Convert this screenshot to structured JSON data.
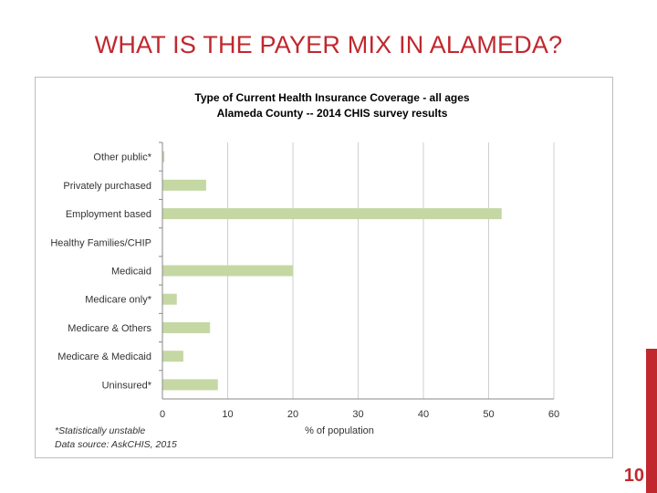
{
  "slide": {
    "title": "WHAT IS THE PAYER MIX IN ALAMEDA?",
    "page_number": "10",
    "accent_color": "#c0282e"
  },
  "chart_data": {
    "type": "bar",
    "orientation": "horizontal",
    "title": "Type of Current Health Insurance Coverage - all ages",
    "subtitle": "Alameda County -- 2014 CHIS survey results",
    "xlabel": "% of population",
    "ylabel": "",
    "categories": [
      "Other public*",
      "Privately purchased",
      "Employment based",
      "Healthy Families/CHIP",
      "Medicaid",
      "Medicare only*",
      "Medicare & Others",
      "Medicare & Medicaid",
      "Uninsured*"
    ],
    "values": [
      0.3,
      6.7,
      52,
      0,
      20,
      2.2,
      7.3,
      3.2,
      8.5
    ],
    "xlim": [
      0,
      60
    ],
    "xticks": [
      0,
      10,
      20,
      30,
      40,
      50,
      60
    ],
    "grid": "vertical",
    "bar_color": "#c5d8a4",
    "notes": [
      "*Statistically unstable",
      "Data source: AskCHIS, 2015"
    ]
  }
}
